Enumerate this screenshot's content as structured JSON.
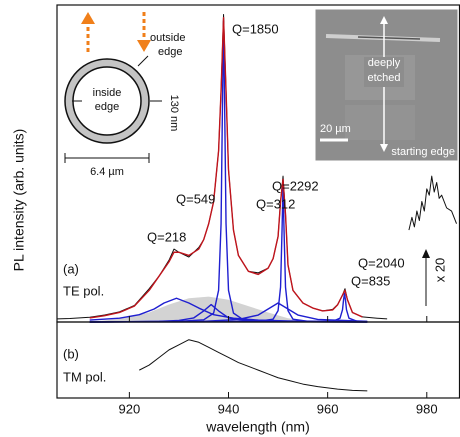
{
  "chart_data": [
    {
      "type": "line",
      "ylabel": "PL intensity (arb. units)",
      "xlim": [
        905.4,
        986.6
      ],
      "ylim": [
        0,
        100
      ],
      "series": [
        {
          "kind": "area",
          "color": "#d3d3d3",
          "x": [
            912,
            918,
            924,
            928,
            932,
            936,
            940,
            944,
            948,
            952,
            958
          ],
          "values": [
            0,
            1,
            3,
            5.5,
            7.5,
            8,
            7,
            5,
            3,
            1.2,
            0
          ]
        },
        {
          "color": "#1f1fd0",
          "x": [
            912,
            918,
            922,
            925,
            927,
            929.5,
            932,
            934,
            937,
            941,
            946,
            952,
            960,
            968
          ],
          "values": [
            0.6,
            1.2,
            2.3,
            4.1,
            6.0,
            7.5,
            6.0,
            4.4,
            2.3,
            1.2,
            0.6,
            0.35,
            0.2,
            0.1
          ]
        },
        {
          "color": "#1f1fd0",
          "x": [
            912,
            926,
            930,
            933,
            935,
            936.5,
            938,
            940,
            943,
            950,
            968
          ],
          "values": [
            0,
            0.2,
            0.5,
            1.3,
            3.5,
            5.5,
            3.5,
            1.3,
            0.5,
            0.1,
            0
          ]
        },
        {
          "color": "#1f1fd0",
          "x": [
            912,
            930,
            935,
            937,
            938,
            938.5,
            938.8,
            939,
            939.2,
            939.5,
            940,
            941,
            943,
            950,
            968
          ],
          "values": [
            0,
            0.2,
            0.7,
            2.8,
            10,
            31,
            71,
            95,
            71,
            31,
            10,
            2.8,
            0.7,
            0.1,
            0
          ]
        },
        {
          "color": "#1f1fd0",
          "x": [
            912,
            935,
            942,
            946,
            948,
            950,
            952,
            954,
            958,
            968
          ],
          "values": [
            0,
            0.2,
            0.8,
            2.2,
            4.1,
            6,
            4.1,
            2.2,
            0.8,
            0.2
          ]
        },
        {
          "color": "#1f1fd0",
          "x": [
            912,
            946,
            949,
            950,
            950.5,
            950.8,
            951,
            951.2,
            951.5,
            952,
            953,
            956,
            968
          ],
          "values": [
            0,
            0.2,
            0.9,
            3.6,
            11,
            29,
            43,
            29,
            11,
            3.6,
            0.9,
            0.2,
            0
          ]
        },
        {
          "color": "#1f1fd0",
          "x": [
            912,
            958,
            961,
            962.5,
            963,
            963.2,
            963.4,
            963.6,
            963.8,
            964.3,
            966,
            968
          ],
          "values": [
            0,
            0.1,
            0.2,
            1.2,
            3.9,
            6.9,
            9,
            6.9,
            3.9,
            1.2,
            0.2,
            0.1
          ]
        },
        {
          "color": "#111111",
          "x": [
            905.5,
            908,
            912,
            915,
            918,
            921,
            924,
            926,
            928,
            929,
            930,
            932,
            934,
            935,
            936,
            937,
            938,
            938.5,
            939,
            939.5,
            940,
            941,
            942,
            944,
            946,
            948,
            949,
            950,
            950.5,
            951,
            951.5,
            952,
            953,
            955,
            957,
            959,
            961,
            962,
            963,
            963.5,
            964,
            965,
            967,
            970,
            972
          ],
          "values": [
            1,
            1.1,
            1.5,
            2.2,
            3.2,
            5.2,
            10.5,
            14.5,
            19.5,
            23,
            22,
            20.5,
            23.5,
            26,
            31,
            38,
            54,
            73,
            97,
            73,
            48,
            29,
            21,
            16,
            15.5,
            17,
            20,
            27,
            38,
            46,
            34,
            18,
            10,
            6,
            4.4,
            3.5,
            4,
            5.5,
            8.5,
            10.5,
            7,
            3,
            1.6,
            1.2,
            1
          ]
        },
        {
          "color": "#c0141c",
          "x": [
            912,
            915,
            918,
            921,
            924,
            926,
            928,
            929,
            930,
            932,
            934,
            935,
            936,
            937,
            938,
            938.5,
            939,
            939.5,
            940,
            941,
            942,
            944,
            946,
            948,
            949,
            950,
            950.5,
            951,
            951.5,
            952,
            953,
            955,
            957,
            959,
            961,
            962,
            963,
            963.5,
            964,
            965,
            967
          ],
          "values": [
            1.3,
            2,
            3,
            5,
            10,
            14.5,
            19,
            22,
            22,
            21,
            23,
            26,
            31,
            38,
            54,
            73,
            96,
            73,
            48,
            29,
            21,
            16,
            15,
            17,
            20,
            27,
            38,
            45,
            34,
            18,
            10,
            6,
            4.4,
            3.5,
            3.8,
            5.4,
            8.5,
            10,
            7,
            3,
            1.6
          ]
        },
        {
          "color": "#111111",
          "x": [
            976.4,
            977,
            977.5,
            978,
            978.5,
            979,
            979.5,
            980,
            980.5,
            981,
            981.5,
            982,
            982.5,
            983,
            984,
            985,
            986
          ],
          "values": [
            29,
            33,
            30,
            35,
            32,
            38,
            35,
            42,
            40,
            46,
            41,
            44,
            39,
            40,
            36,
            35,
            31
          ]
        }
      ],
      "annotations": [
        "Q=1850",
        "Q=549",
        "Q=2292",
        "Q=312",
        "Q=218",
        "Q=2040",
        "Q=835",
        "(a)",
        "TE pol.",
        "x 20"
      ],
      "ring_labels": [
        "outside",
        "edge",
        "inside",
        "edge",
        "130 nm",
        "6.4 µm"
      ],
      "sem_labels": [
        "deeply",
        "etched",
        "20 µm",
        "starting edge"
      ]
    },
    {
      "type": "line",
      "xlabel": "wavelength (nm)",
      "xlim": [
        905.4,
        986.6
      ],
      "ylim": [
        0,
        30
      ],
      "xticks": [
        920,
        940,
        960,
        980
      ],
      "series": [
        {
          "color": "#111111",
          "x": [
            922,
            924,
            926,
            928,
            930,
            932,
            934,
            936,
            938,
            940,
            942,
            944,
            946,
            948,
            950,
            952,
            955,
            958,
            962,
            965,
            968
          ],
          "values": [
            11,
            13,
            16,
            19,
            21,
            23,
            22,
            20,
            18,
            16,
            14,
            12.5,
            11,
            9.5,
            8,
            7,
            5.5,
            4.5,
            3.5,
            3,
            2.8
          ]
        }
      ],
      "annotations": [
        "(b)",
        "TM pol."
      ]
    }
  ]
}
